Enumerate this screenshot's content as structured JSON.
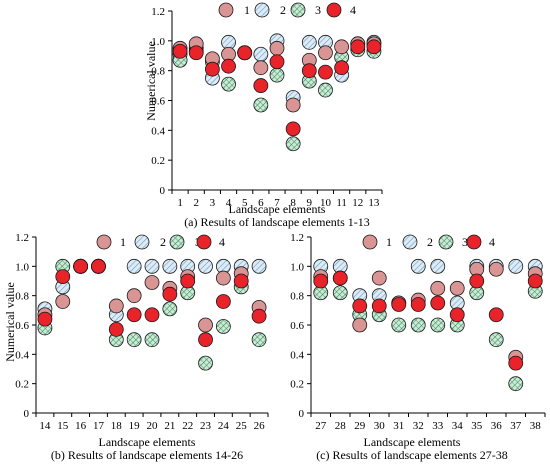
{
  "colors": {
    "s1": "#d99494",
    "s2": "#dcebf5",
    "s3": "#c8ecd6",
    "s4": "#e8232a",
    "hatch": "#6b9cc4",
    "axis": "#000000",
    "marker_edge": "#1a1a1a"
  },
  "chart_data": [
    {
      "id": "a",
      "type": "scatter",
      "caption": "(a) Results of landscape elements 1-13",
      "xlabel": "Landscape elements",
      "ylabel": "Numerical value",
      "ylim": [
        0,
        1.2
      ],
      "yticks": [
        0,
        0.2,
        0.4,
        0.6,
        0.8,
        1.0,
        1.2
      ],
      "ytick_labels": [
        "0",
        "0.2",
        "0.4",
        "0.6",
        "0.8",
        "1.0",
        "1.2"
      ],
      "categories": [
        "1",
        "2",
        "3",
        "4",
        "5",
        "6",
        "7",
        "8",
        "9",
        "10",
        "11",
        "12",
        "13"
      ],
      "legend": [
        "1",
        "2",
        "3",
        "4"
      ],
      "series": [
        {
          "name": "1",
          "values": [
            0.95,
            0.98,
            0.88,
            0.91,
            0.92,
            0.82,
            0.95,
            0.57,
            0.87,
            0.92,
            0.96,
            0.98,
            0.98
          ]
        },
        {
          "name": "2",
          "values": [
            0.91,
            0.95,
            0.75,
            0.99,
            0.92,
            0.91,
            1.0,
            0.62,
            0.99,
            0.99,
            0.77,
            0.98,
            0.99
          ]
        },
        {
          "name": "3",
          "values": [
            0.87,
            0.93,
            0.86,
            0.71,
            0.92,
            0.57,
            0.77,
            0.31,
            0.73,
            0.67,
            0.89,
            0.94,
            0.93
          ]
        },
        {
          "name": "4",
          "values": [
            0.93,
            0.92,
            0.81,
            0.83,
            0.92,
            0.7,
            0.86,
            0.41,
            0.8,
            0.79,
            0.82,
            0.96,
            0.96
          ]
        }
      ]
    },
    {
      "id": "b",
      "type": "scatter",
      "caption": "(b) Results of landscape elements 14-26",
      "xlabel": "Landscape elements",
      "ylabel": "Numerical value",
      "ylim": [
        0,
        1.2
      ],
      "yticks": [
        0,
        0.2,
        0.4,
        0.6,
        0.8,
        1.0,
        1.2
      ],
      "ytick_labels": [
        "0",
        "0.2",
        "0.4",
        "0.6",
        "0.8",
        "1.0",
        "1.2"
      ],
      "categories": [
        "14",
        "15",
        "16",
        "17",
        "18",
        "19",
        "20",
        "21",
        "22",
        "23",
        "24",
        "25",
        "26"
      ],
      "legend": [
        "1",
        "2",
        "3",
        "4"
      ],
      "series": [
        {
          "name": "1",
          "values": [
            0.67,
            0.76,
            1.0,
            1.0,
            0.73,
            0.8,
            0.89,
            0.85,
            0.93,
            0.6,
            0.92,
            0.95,
            0.72
          ]
        },
        {
          "name": "2",
          "values": [
            0.71,
            0.86,
            1.0,
            1.0,
            0.67,
            1.0,
            1.0,
            1.0,
            1.0,
            1.0,
            1.0,
            1.0,
            1.0
          ]
        },
        {
          "name": "3",
          "values": [
            0.58,
            1.0,
            1.0,
            1.0,
            0.5,
            0.5,
            0.5,
            0.71,
            0.82,
            0.34,
            0.59,
            0.86,
            0.5
          ]
        },
        {
          "name": "4",
          "values": [
            0.64,
            0.93,
            1.0,
            1.0,
            0.57,
            0.67,
            0.67,
            0.81,
            0.9,
            0.5,
            0.76,
            0.9,
            0.66
          ]
        }
      ]
    },
    {
      "id": "c",
      "type": "scatter",
      "caption": "(c) Results of landscape elements 27-38",
      "xlabel": "Landscape elements",
      "ylabel": "",
      "ylim": [
        0,
        1.2
      ],
      "yticks": [
        0,
        0.2,
        0.4,
        0.6,
        0.8,
        1.0,
        1.2
      ],
      "ytick_labels": [
        "0",
        "0.2",
        "0.4",
        "0.6",
        "0.8",
        "1.0",
        "1.2"
      ],
      "categories": [
        "27",
        "28",
        "29",
        "30",
        "31",
        "32",
        "33",
        "34",
        "35",
        "36",
        "37",
        "38"
      ],
      "legend": [
        "1",
        "2",
        "3",
        "4"
      ],
      "series": [
        {
          "name": "1",
          "values": [
            0.93,
            0.92,
            0.6,
            0.92,
            0.75,
            0.77,
            0.85,
            0.85,
            0.98,
            0.98,
            0.38,
            0.95
          ]
        },
        {
          "name": "2",
          "values": [
            1.0,
            1.0,
            0.8,
            0.8,
            0.75,
            1.0,
            1.0,
            0.75,
            1.0,
            1.0,
            1.0,
            1.0
          ]
        },
        {
          "name": "3",
          "values": [
            0.82,
            0.82,
            0.67,
            0.67,
            0.6,
            0.6,
            0.6,
            0.6,
            0.82,
            0.5,
            0.2,
            0.83
          ]
        },
        {
          "name": "4",
          "values": [
            0.9,
            0.92,
            0.73,
            0.73,
            0.74,
            0.74,
            0.75,
            0.67,
            0.9,
            0.67,
            0.34,
            0.9
          ]
        }
      ]
    }
  ]
}
